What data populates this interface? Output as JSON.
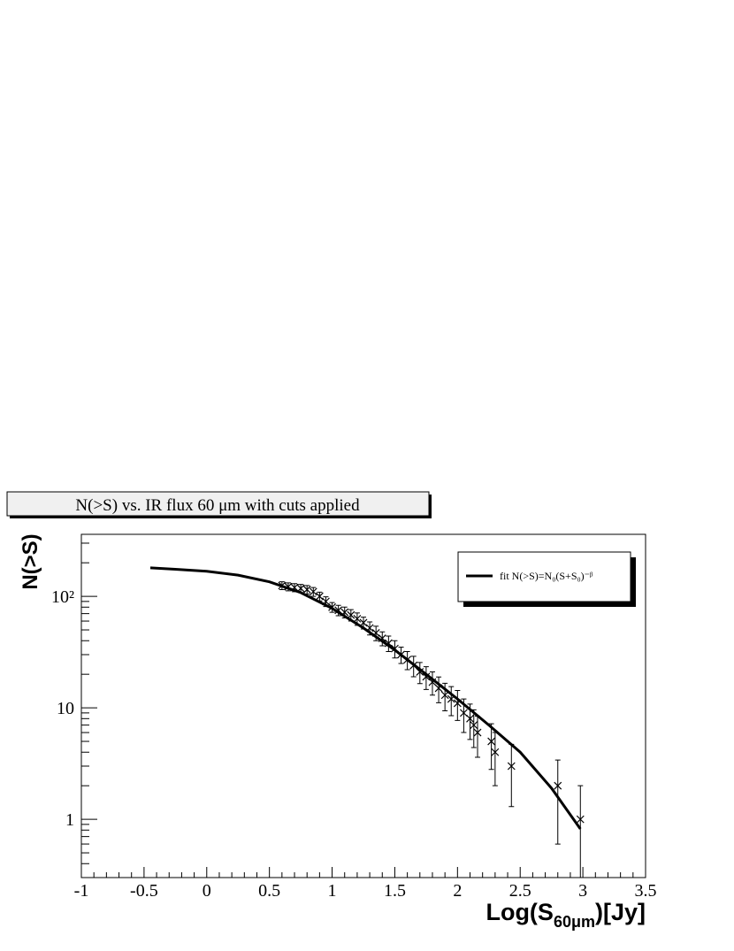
{
  "chart_data": {
    "type": "scatter",
    "title": "N(>S) vs. IR flux   60   μm with cuts applied",
    "xlabel": {
      "main": "Log(S",
      "sub": "60μm",
      "tail": ")[Jy]"
    },
    "ylabel": "N(>S)",
    "xlim": [
      -1,
      3.5
    ],
    "xticks": [
      -1,
      -0.5,
      0,
      0.5,
      1,
      1.5,
      2,
      2.5,
      3,
      3.5
    ],
    "ylim": [
      0.3,
      360
    ],
    "log_y": true,
    "yticks": [
      1,
      10,
      {
        "value": 100,
        "label": "10²"
      }
    ],
    "legend": "top-right",
    "series": [
      {
        "name": "fit N(>S)=N₀(S+S₀)⁻ᵝ",
        "type": "line",
        "color": "#000000",
        "x": [
          -0.45,
          -0.25,
          0,
          0.25,
          0.5,
          0.75,
          1,
          1.25,
          1.5,
          1.75,
          2,
          2.25,
          2.5,
          2.75,
          2.98
        ],
        "y": [
          180,
          175,
          168,
          155,
          135,
          108,
          78,
          52,
          33,
          20,
          12,
          7,
          4,
          1.9,
          0.82
        ]
      },
      {
        "type": "scatter",
        "marker": "x",
        "color": "#000000",
        "x": [
          0.6,
          0.65,
          0.7,
          0.75,
          0.8,
          0.85,
          0.9,
          0.95,
          1.0,
          1.05,
          1.1,
          1.15,
          1.2,
          1.25,
          1.3,
          1.35,
          1.4,
          1.45,
          1.5,
          1.55,
          1.6,
          1.65,
          1.7,
          1.75,
          1.8,
          1.85,
          1.9,
          1.95,
          2.0,
          2.05,
          2.1,
          2.13,
          2.16,
          2.27,
          2.3,
          2.43,
          2.8,
          2.98
        ],
        "y": [
          125,
          122,
          120,
          118,
          115,
          110,
          100,
          90,
          80,
          75,
          72,
          68,
          63,
          58,
          52,
          47,
          42,
          38,
          34,
          30,
          27,
          24,
          21,
          19,
          17,
          15,
          13,
          12,
          11,
          9,
          8,
          7,
          6,
          5,
          4,
          3,
          2,
          1
        ],
        "errors": [
          10,
          10,
          10,
          10,
          10,
          10,
          9,
          9,
          8,
          8,
          8,
          8,
          8,
          7,
          7,
          7,
          6,
          6,
          6,
          5,
          5,
          5,
          4.5,
          4.4,
          4,
          3.9,
          3.6,
          3.5,
          3.3,
          3,
          2.8,
          2.6,
          2.4,
          2.2,
          2,
          1.7,
          1.4,
          1
        ]
      }
    ]
  }
}
